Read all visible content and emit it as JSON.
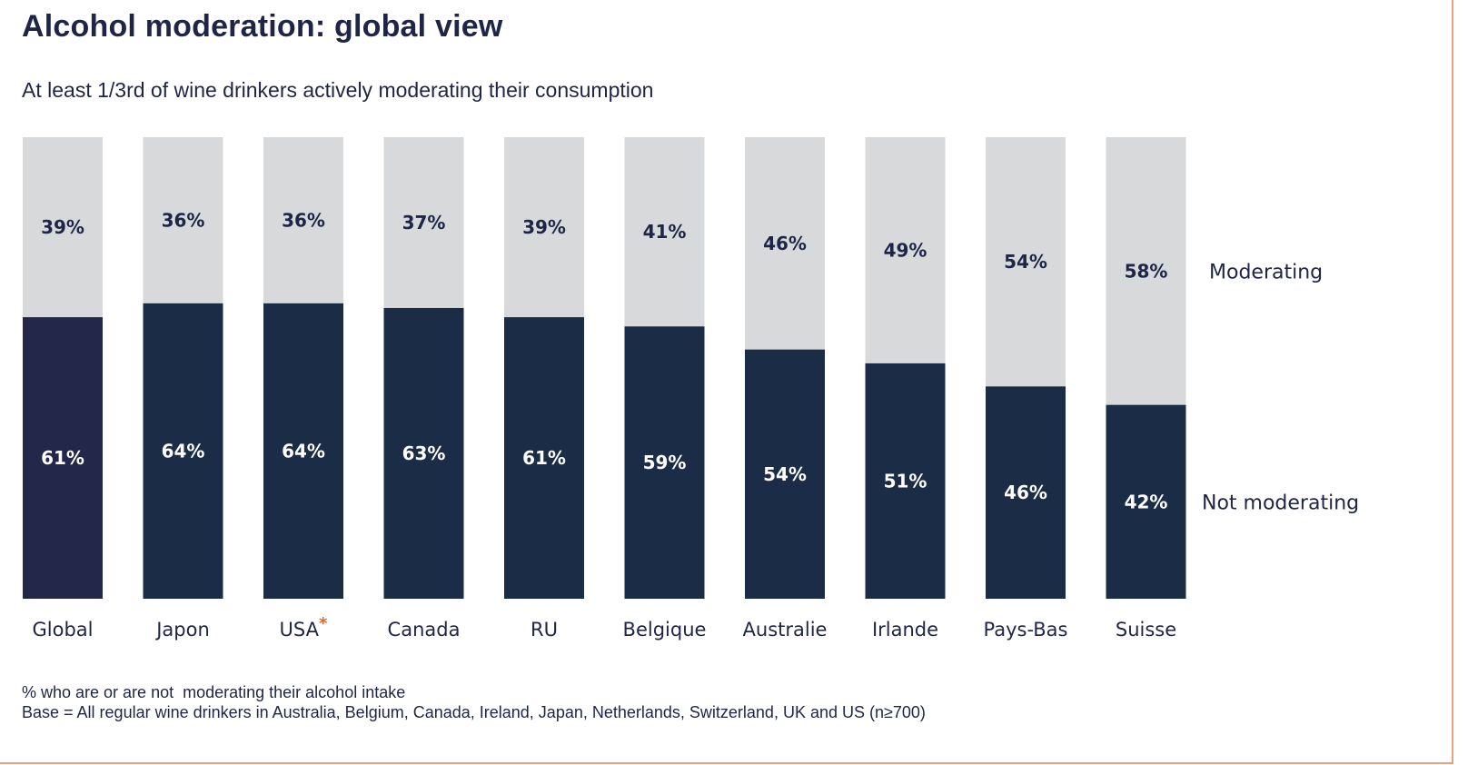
{
  "title": "Alcohol moderation: global view",
  "subtitle": "At least 1/3rd of wine drinkers actively moderating their consumption",
  "footnotes": [
    "% who are or are not  moderating their alcohol intake",
    "Base = All regular wine drinkers in Australia, Belgium, Canada, Ireland, Japan, Netherlands, Switzerland, UK and US (n≥700)"
  ],
  "colors": {
    "moderating": "#d8d9db",
    "not_moderating": "#1b2c46",
    "global_not_moderating": "#23284b",
    "text_dark": "#1f2547",
    "text_light": "#ffffff",
    "asterisk": "#e8632a",
    "border": "#e8a17e"
  },
  "chart_data": {
    "type": "bar",
    "stacked": true,
    "percent": true,
    "categories": [
      "Global",
      "Japon",
      "USA",
      "Canada",
      "RU",
      "Belgique",
      "Australie",
      "Irlande",
      "Pays-Bas",
      "Suisse"
    ],
    "category_marks": [
      "",
      "",
      "*",
      "",
      "",
      "",
      "",
      "",
      "",
      ""
    ],
    "series": [
      {
        "name": "Not moderating",
        "values": [
          61,
          64,
          64,
          63,
          61,
          59,
          54,
          51,
          46,
          42
        ],
        "labels": [
          "61%",
          "64%",
          "64%",
          "63%",
          "61%",
          "59%",
          "54%",
          "51%",
          "46%",
          "42%"
        ]
      },
      {
        "name": "Moderating",
        "values": [
          39,
          36,
          36,
          37,
          39,
          41,
          46,
          49,
          54,
          58
        ],
        "labels": [
          "39%",
          "36%",
          "36%",
          "37%",
          "39%",
          "41%",
          "46%",
          "49%",
          "54%",
          "58%"
        ]
      }
    ],
    "legend": [
      "Moderating",
      "Not moderating"
    ],
    "legend_position": "right",
    "ylim": [
      0,
      100
    ],
    "grid": false,
    "title": "Alcohol moderation: global view",
    "xlabel": "",
    "ylabel": ""
  }
}
